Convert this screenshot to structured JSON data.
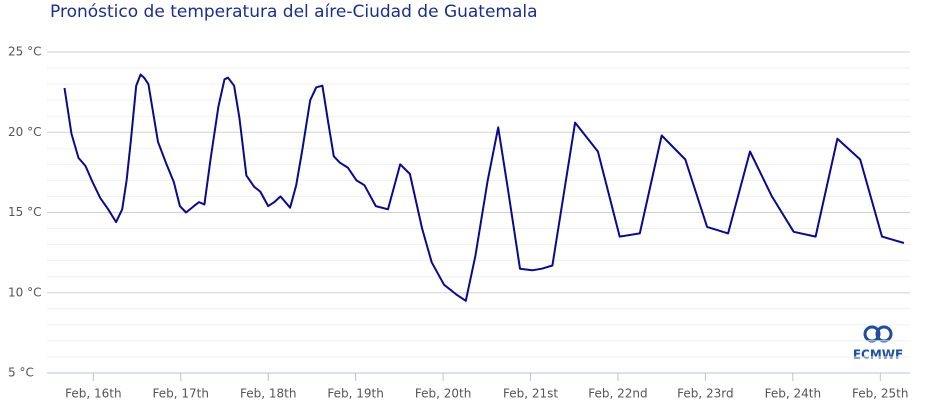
{
  "chart_data": {
    "type": "line",
    "title": "Pronóstico de temperatura del aíre-Ciudad de Guatemala",
    "source": "ECMWF",
    "x": [
      15.67,
      15.75,
      15.83,
      15.91,
      15.99,
      16.08,
      16.17,
      16.26,
      16.33,
      16.38,
      16.43,
      16.49,
      16.54,
      16.58,
      16.63,
      16.74,
      16.83,
      16.92,
      16.99,
      17.06,
      17.15,
      17.21,
      17.27,
      17.34,
      17.43,
      17.5,
      17.54,
      17.61,
      17.67,
      17.75,
      17.84,
      17.91,
      18.0,
      18.07,
      18.14,
      18.25,
      18.32,
      18.39,
      18.48,
      18.55,
      18.62,
      18.69,
      18.75,
      18.82,
      18.91,
      19.01,
      19.1,
      19.23,
      19.37,
      19.51,
      19.62,
      19.76,
      19.87,
      20.01,
      20.15,
      20.26,
      20.37,
      20.51,
      20.63,
      20.74,
      20.88,
      21.02,
      21.13,
      21.25,
      21.51,
      21.77,
      22.02,
      22.25,
      22.5,
      22.77,
      23.02,
      23.26,
      23.51,
      23.76,
      24.01,
      24.26,
      24.51,
      24.77,
      25.02,
      25.27
    ],
    "series": [
      {
        "name": "Temperature",
        "color": "#0a0a8c",
        "values": [
          22.76,
          19.9,
          18.4,
          17.9,
          16.9,
          15.9,
          15.2,
          14.4,
          15.2,
          17.0,
          19.5,
          22.9,
          23.6,
          23.4,
          23.0,
          19.4,
          18.1,
          16.9,
          15.4,
          15.0,
          15.4,
          15.65,
          15.5,
          18.3,
          21.6,
          23.3,
          23.4,
          22.9,
          20.9,
          17.3,
          16.6,
          16.3,
          15.4,
          15.65,
          16.0,
          15.3,
          16.7,
          18.9,
          22.0,
          22.8,
          22.9,
          20.5,
          18.5,
          18.1,
          17.8,
          17.0,
          16.7,
          15.4,
          15.2,
          18.0,
          17.4,
          14.0,
          11.9,
          10.5,
          9.9,
          9.5,
          12.3,
          17.0,
          20.3,
          16.5,
          11.5,
          11.4,
          11.5,
          11.7,
          20.6,
          18.8,
          13.5,
          13.7,
          19.8,
          18.3,
          14.1,
          13.7,
          18.8,
          16.0,
          13.8,
          13.5,
          19.6,
          18.3,
          13.5,
          13.1
        ]
      }
    ],
    "xlim": [
      15.47,
      25.34
    ],
    "xticks": [
      {
        "value": 16,
        "label": "Feb, 16th"
      },
      {
        "value": 17,
        "label": "Feb, 17th"
      },
      {
        "value": 18,
        "label": "Feb, 18th"
      },
      {
        "value": 19,
        "label": "Feb, 19th"
      },
      {
        "value": 20,
        "label": "Feb, 20th"
      },
      {
        "value": 21,
        "label": "Feb, 21st"
      },
      {
        "value": 22,
        "label": "Feb, 22nd"
      },
      {
        "value": 23,
        "label": "Feb, 23rd"
      },
      {
        "value": 24,
        "label": "Feb, 24th"
      },
      {
        "value": 25,
        "label": "Feb, 25th"
      }
    ],
    "ylim": [
      5,
      25
    ],
    "yticks": [
      {
        "value": 5,
        "label": "5 °C"
      },
      {
        "value": 10,
        "label": "10 °C"
      },
      {
        "value": 15,
        "label": "15 °C"
      },
      {
        "value": 20,
        "label": "20 °C"
      },
      {
        "value": 25,
        "label": "25 °C"
      }
    ],
    "minor_yticks": [
      6,
      7,
      8,
      9,
      11,
      12,
      13,
      14,
      16,
      17,
      18,
      19,
      21,
      22,
      23,
      24
    ],
    "grid": true
  }
}
